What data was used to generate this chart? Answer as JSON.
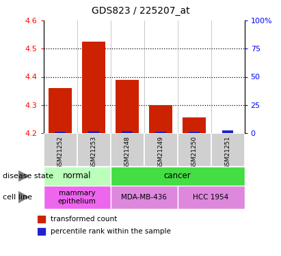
{
  "title": "GDS823 / 225207_at",
  "categories": [
    "GSM21252",
    "GSM21253",
    "GSM21248",
    "GSM21249",
    "GSM21250",
    "GSM21251"
  ],
  "transformed_counts": [
    4.36,
    4.525,
    4.39,
    4.3,
    4.255,
    4.2
  ],
  "percentile_ranks": [
    1.5,
    2.0,
    1.8,
    1.5,
    1.5,
    2.5
  ],
  "bar_bottom": 4.2,
  "ylim_left": [
    4.2,
    4.6
  ],
  "ylim_right": [
    0,
    100
  ],
  "yticks_left": [
    4.2,
    4.3,
    4.4,
    4.5,
    4.6
  ],
  "yticks_right": [
    0,
    25,
    50,
    75,
    100
  ],
  "ytick_labels_right": [
    "0",
    "25",
    "50",
    "75",
    "100%"
  ],
  "disease_state_groups": [
    {
      "label": "normal",
      "start": 0,
      "end": 2,
      "color": "#bbffbb"
    },
    {
      "label": "cancer",
      "start": 2,
      "end": 6,
      "color": "#44dd44"
    }
  ],
  "cell_line_groups": [
    {
      "label": "mammary\nepithelium",
      "start": 0,
      "end": 2,
      "color": "#ee66ee"
    },
    {
      "label": "MDA-MB-436",
      "start": 2,
      "end": 4,
      "color": "#dd88dd"
    },
    {
      "label": "HCC 1954",
      "start": 4,
      "end": 6,
      "color": "#dd88dd"
    }
  ],
  "legend_items": [
    {
      "label": "transformed count",
      "color": "#cc2200"
    },
    {
      "label": "percentile rank within the sample",
      "color": "#2222cc"
    }
  ],
  "disease_state_label": "disease state",
  "cell_line_label": "cell line",
  "bar_color_red": "#cc2200",
  "bar_color_blue": "#2222cc",
  "xtick_bg": "#d0d0d0",
  "bar_width": 0.7,
  "dotted_lines": [
    4.3,
    4.4,
    4.5
  ],
  "title_fontsize": 10
}
